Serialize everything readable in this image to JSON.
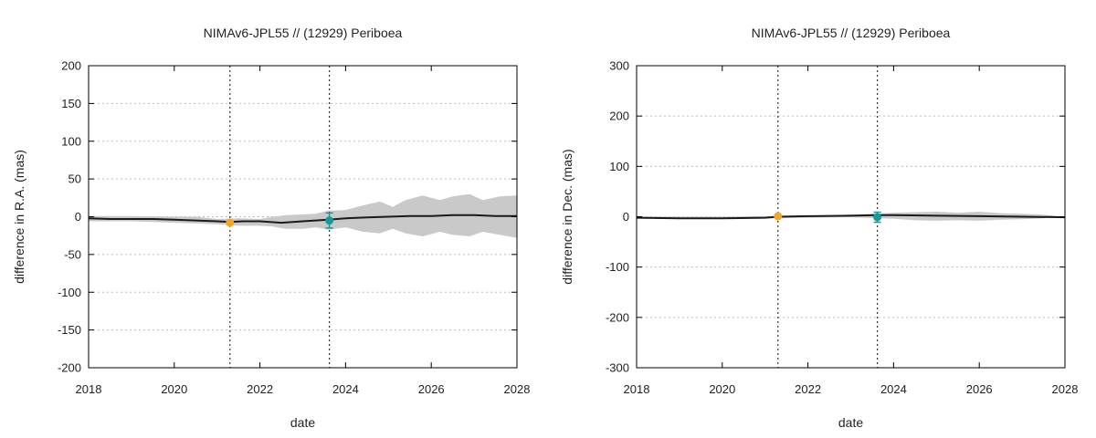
{
  "chart_data": [
    {
      "type": "line",
      "title": "NIMAv6-JPL55 // (12929) Periboea",
      "xlabel": "date",
      "ylabel": "difference in R.A. (mas)",
      "xlim": [
        2018,
        2028
      ],
      "ylim": [
        -200,
        200
      ],
      "xticks": [
        "2018",
        "2020",
        "2022",
        "2024",
        "2026",
        "2028"
      ],
      "xtick_values": [
        2018,
        2020,
        2022,
        2024,
        2026,
        2028
      ],
      "yticks": [
        "-200",
        "-150",
        "-100",
        "-50",
        "0",
        "50",
        "100",
        "150",
        "200"
      ],
      "ytick_values": [
        -200,
        -150,
        -100,
        -50,
        0,
        50,
        100,
        150,
        200
      ],
      "grid": true,
      "vlines": [
        2021.3,
        2023.62
      ],
      "series": [
        {
          "kind": "uncertainty-band",
          "x": [
            2018,
            2019,
            2020,
            2020.5,
            2021,
            2021.5,
            2022,
            2022.3,
            2022.6,
            2023,
            2023.3,
            2023.6,
            2024,
            2024.4,
            2024.8,
            2025.1,
            2025.4,
            2025.8,
            2026.2,
            2026.5,
            2026.9,
            2027.2,
            2027.6,
            2028
          ],
          "upper": [
            1,
            1,
            0,
            0,
            -3,
            -2,
            -3,
            0,
            2,
            3,
            4,
            8,
            9,
            15,
            20,
            13,
            22,
            28,
            22,
            27,
            30,
            22,
            27,
            28
          ],
          "lower": [
            -6,
            -6,
            -8,
            -9,
            -10,
            -12,
            -12,
            -13,
            -16,
            -16,
            -14,
            -17,
            -14,
            -20,
            -22,
            -16,
            -22,
            -26,
            -20,
            -24,
            -26,
            -20,
            -24,
            -28
          ]
        },
        {
          "kind": "line",
          "x": [
            2018,
            2018.5,
            2019,
            2019.5,
            2020,
            2020.5,
            2021,
            2021.3,
            2021.6,
            2022,
            2022.5,
            2023,
            2023.6,
            2024,
            2024.5,
            2025,
            2025.5,
            2026,
            2026.5,
            2027,
            2027.5,
            2028
          ],
          "values": [
            -2,
            -3,
            -3,
            -3,
            -4,
            -5,
            -6,
            -7,
            -6,
            -6,
            -8,
            -6,
            -4,
            -2,
            -1,
            0,
            1,
            1,
            2,
            2,
            1,
            1
          ]
        },
        {
          "kind": "points",
          "x": [
            2021.3,
            2023.62
          ],
          "values": [
            -8,
            -5
          ],
          "yerr": [
            1.5,
            10
          ],
          "colors": [
            "#f5a623",
            "#17999b"
          ]
        }
      ]
    },
    {
      "type": "line",
      "title": "NIMAv6-JPL55 // (12929) Periboea",
      "xlabel": "date",
      "ylabel": "difference in Dec. (mas)",
      "xlim": [
        2018,
        2028
      ],
      "ylim": [
        -300,
        300
      ],
      "xticks": [
        "2018",
        "2020",
        "2022",
        "2024",
        "2026",
        "2028"
      ],
      "xtick_values": [
        2018,
        2020,
        2022,
        2024,
        2026,
        2028
      ],
      "yticks": [
        "-300",
        "-200",
        "-100",
        "0",
        "100",
        "200",
        "300"
      ],
      "ytick_values": [
        -300,
        -200,
        -100,
        0,
        100,
        200,
        300
      ],
      "grid": true,
      "vlines": [
        2021.3,
        2023.62
      ],
      "series": [
        {
          "kind": "uncertainty-band",
          "x": [
            2018,
            2019,
            2020,
            2021,
            2022,
            2023,
            2023.6,
            2024,
            2024.5,
            2025,
            2025.5,
            2026,
            2026.5,
            2027,
            2027.5,
            2028
          ],
          "upper": [
            0,
            0,
            0,
            1,
            2,
            4,
            6,
            8,
            9,
            10,
            8,
            10,
            7,
            6,
            4,
            0
          ],
          "lower": [
            -3,
            -4,
            -4,
            -3,
            -2,
            -1,
            -3,
            -4,
            -7,
            -8,
            -7,
            -8,
            -6,
            -5,
            -3,
            -1
          ]
        },
        {
          "kind": "line",
          "x": [
            2018,
            2019,
            2020,
            2021,
            2021.3,
            2022,
            2023,
            2023.6,
            2024,
            2025,
            2026,
            2027,
            2028
          ],
          "values": [
            -2,
            -3,
            -3,
            -2,
            0,
            1,
            2,
            3,
            3,
            2,
            1,
            0,
            -1
          ]
        },
        {
          "kind": "points",
          "x": [
            2021.3,
            2023.62
          ],
          "values": [
            1,
            -1
          ],
          "yerr": [
            2,
            10
          ],
          "colors": [
            "#f5a623",
            "#17999b"
          ]
        }
      ]
    }
  ]
}
